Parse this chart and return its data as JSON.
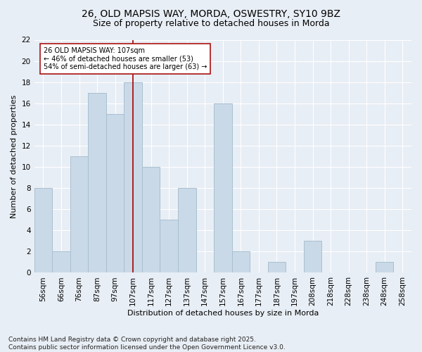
{
  "title1": "26, OLD MAPSIS WAY, MORDA, OSWESTRY, SY10 9BZ",
  "title2": "Size of property relative to detached houses in Morda",
  "xlabel": "Distribution of detached houses by size in Morda",
  "ylabel": "Number of detached properties",
  "footer1": "Contains HM Land Registry data © Crown copyright and database right 2025.",
  "footer2": "Contains public sector information licensed under the Open Government Licence v3.0.",
  "categories": [
    "56sqm",
    "66sqm",
    "76sqm",
    "87sqm",
    "97sqm",
    "107sqm",
    "117sqm",
    "127sqm",
    "137sqm",
    "147sqm",
    "157sqm",
    "167sqm",
    "177sqm",
    "187sqm",
    "197sqm",
    "208sqm",
    "218sqm",
    "228sqm",
    "238sqm",
    "248sqm",
    "258sqm"
  ],
  "values": [
    8,
    2,
    11,
    17,
    15,
    18,
    10,
    5,
    8,
    0,
    16,
    2,
    0,
    1,
    0,
    3,
    0,
    0,
    0,
    1,
    0
  ],
  "highlight_index": 5,
  "bar_color": "#c9d9e8",
  "bar_edgecolor": "#aabfcf",
  "highlight_line_color": "#aa1111",
  "annotation_text": "26 OLD MAPSIS WAY: 107sqm\n← 46% of detached houses are smaller (53)\n54% of semi-detached houses are larger (63) →",
  "annotation_box_color": "#ffffff",
  "annotation_box_edgecolor": "#aa1111",
  "ylim": [
    0,
    22
  ],
  "yticks": [
    0,
    2,
    4,
    6,
    8,
    10,
    12,
    14,
    16,
    18,
    20,
    22
  ],
  "bg_color": "#e8eef5",
  "grid_color": "#ffffff",
  "title_fontsize": 10,
  "subtitle_fontsize": 9,
  "axis_label_fontsize": 8,
  "tick_fontsize": 7.5,
  "footer_fontsize": 6.5,
  "ann_fontsize": 7
}
